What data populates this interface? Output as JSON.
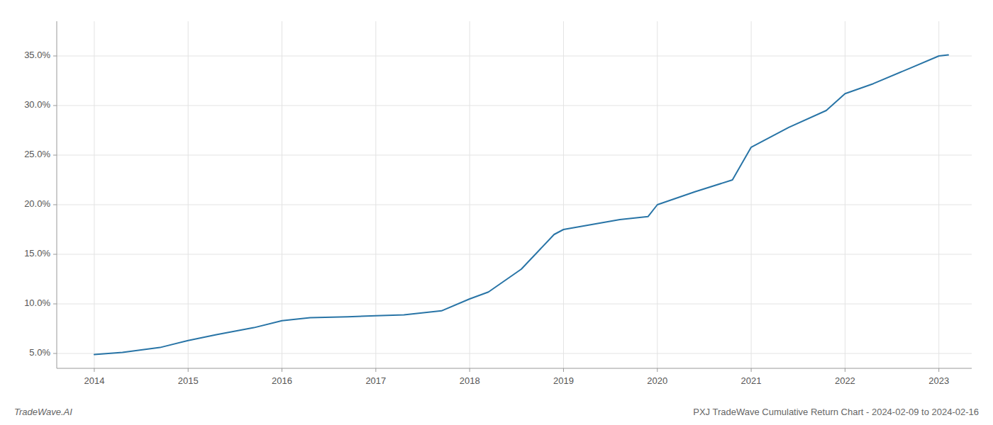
{
  "chart_data": {
    "type": "line",
    "title": "PXJ TradeWave Cumulative Return Chart - 2024-02-09 to 2024-02-16",
    "annotations": [
      "TradeWave.AI"
    ],
    "x": [
      2014.0,
      2014.3,
      2014.7,
      2015.0,
      2015.3,
      2015.7,
      2016.0,
      2016.3,
      2016.7,
      2017.0,
      2017.3,
      2017.7,
      2018.0,
      2018.2,
      2018.55,
      2018.9,
      2019.0,
      2019.3,
      2019.6,
      2019.9,
      2020.0,
      2020.4,
      2020.8,
      2021.0,
      2021.4,
      2021.8,
      2022.0,
      2022.3,
      2022.7,
      2023.0,
      2023.1
    ],
    "values": [
      4.9,
      5.1,
      5.6,
      6.3,
      6.9,
      7.6,
      8.3,
      8.6,
      8.7,
      8.8,
      8.9,
      9.3,
      10.5,
      11.2,
      13.5,
      17.0,
      17.5,
      18.0,
      18.5,
      18.8,
      20.0,
      21.3,
      22.5,
      25.8,
      27.8,
      29.5,
      31.2,
      32.2,
      33.8,
      35.0,
      35.1
    ],
    "color": "#2874a6",
    "xlim": [
      2013.6,
      2023.35
    ],
    "ylim": [
      3.5,
      38.5
    ],
    "xticks": [
      2014,
      2015,
      2016,
      2017,
      2018,
      2019,
      2020,
      2021,
      2022,
      2023
    ],
    "yticks": [
      {
        "value": 5.0,
        "label": "5.0%"
      },
      {
        "value": 10.0,
        "label": "10.0%"
      },
      {
        "value": 15.0,
        "label": "15.0%"
      },
      {
        "value": 20.0,
        "label": "20.0%"
      },
      {
        "value": 25.0,
        "label": "25.0%"
      },
      {
        "value": 30.0,
        "label": "30.0%"
      },
      {
        "value": 35.0,
        "label": "35.0%"
      }
    ],
    "grid": true
  }
}
